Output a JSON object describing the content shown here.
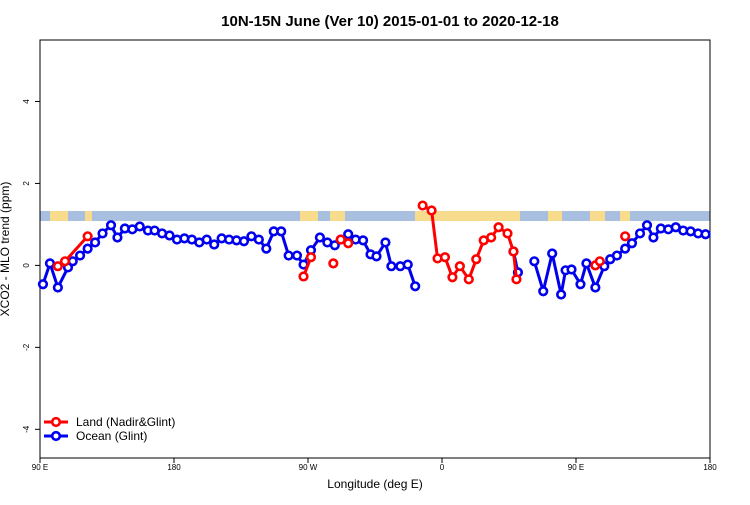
{
  "chart_data": {
    "type": "line",
    "title": "10N-15N June (Ver 10)   2015-01-01 to 2020-12-18",
    "x_label": "Longitude (deg E)",
    "y_label": "XCO2 - MLO trend (ppm)",
    "xlim": [
      90,
      540
    ],
    "ylim": [
      -4.7,
      5.5
    ],
    "xticks": [
      {
        "value": 90,
        "label": "90 E"
      },
      180,
      {
        "value": 270,
        "label": "90 W"
      },
      {
        "value": 360,
        "label": "0"
      },
      {
        "value": 450,
        "label": "90 E"
      },
      {
        "value": 540,
        "label": "180"
      }
    ],
    "yticks": [
      -4,
      -2,
      0,
      2,
      4
    ],
    "legend": "bottom-left",
    "series": [
      {
        "name": "Land (Nadir&Glint)",
        "color": "#ff0000",
        "x": [
          102,
          106.8,
          122,
          null,
          267,
          272,
          null,
          287,
          null,
          292,
          297,
          null,
          347,
          353,
          357,
          362,
          367,
          372,
          378,
          383,
          388,
          393,
          398,
          404,
          408,
          410,
          null,
          463,
          466,
          null,
          483
        ],
        "values": [
          -0.02,
          0.1,
          0.71,
          null,
          -0.27,
          0.2,
          null,
          0.05,
          null,
          0.63,
          0.54,
          null,
          1.46,
          1.34,
          0.17,
          0.2,
          -0.29,
          -0.02,
          -0.34,
          0.15,
          0.61,
          0.68,
          0.93,
          0.78,
          0.34,
          -0.34,
          null,
          0,
          0.1,
          null,
          0.71
        ]
      },
      {
        "name": "Ocean (Glint)",
        "color": "#0000ee",
        "x": [
          92,
          96.7,
          102,
          108.8,
          112,
          116.9,
          122,
          127,
          132,
          137.7,
          142,
          147,
          152,
          157,
          162.5,
          167,
          172,
          177,
          182,
          187,
          192,
          197,
          202,
          207,
          212,
          217,
          222,
          227,
          232,
          237,
          242,
          247,
          252,
          257,
          262.6,
          267,
          272,
          278,
          283,
          288,
          292,
          297,
          302,
          307,
          312,
          316,
          322,
          326,
          332,
          337,
          342,
          null,
          408,
          411,
          null,
          422,
          428,
          434,
          440,
          443,
          447,
          453,
          457,
          463,
          469,
          473,
          477.5,
          483,
          487.6,
          493,
          497.7,
          502,
          507,
          512,
          517,
          522,
          527,
          532,
          537
        ],
        "values": [
          -0.46,
          0.05,
          -0.54,
          -0.05,
          0.1,
          0.24,
          0.41,
          0.56,
          0.78,
          0.98,
          0.68,
          0.9,
          0.88,
          0.95,
          0.85,
          0.85,
          0.78,
          0.73,
          0.63,
          0.66,
          0.63,
          0.56,
          0.63,
          0.51,
          0.66,
          0.63,
          0.61,
          0.59,
          0.71,
          0.63,
          0.41,
          0.83,
          0.83,
          0.24,
          0.24,
          0.02,
          0.37,
          0.68,
          0.56,
          0.49,
          0.63,
          0.76,
          0.63,
          0.61,
          0.27,
          0.22,
          0.56,
          -0.02,
          -0.02,
          0.02,
          -0.51,
          null,
          0.34,
          -0.17,
          null,
          0.1,
          -0.63,
          0.29,
          -0.71,
          -0.12,
          -0.1,
          -0.46,
          0.05,
          -0.54,
          -0.02,
          0.15,
          0.24,
          0.41,
          0.54,
          0.78,
          0.98,
          0.68,
          0.9,
          0.88,
          0.93,
          0.85,
          0.83,
          0.78,
          0.76
        ]
      }
    ]
  }
}
